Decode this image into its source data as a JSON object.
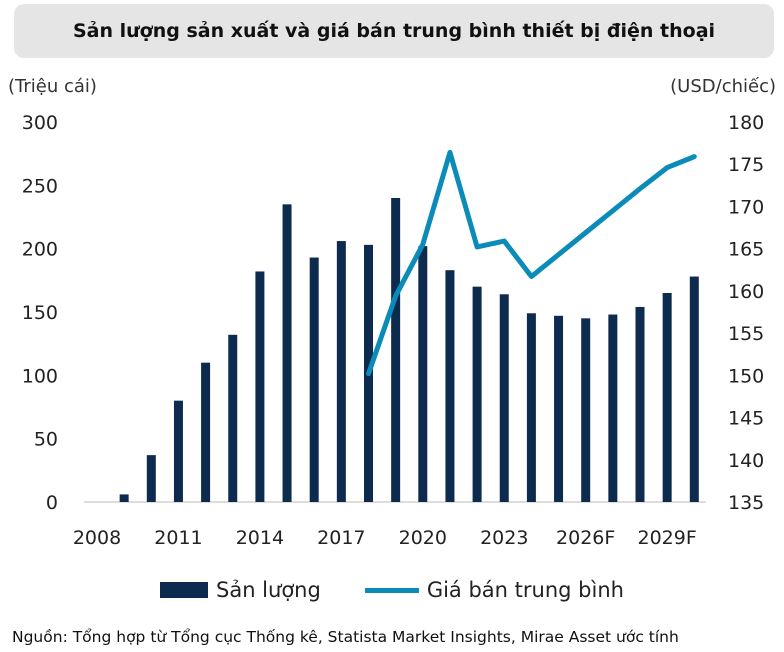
{
  "title": "Sản lượng sản xuất và giá bán trung bình thiết bị điện thoại",
  "source": "Nguồn: Tổng hợp từ Tổng cục Thống kê, Statista Market Insights, Mirae Asset ước tính",
  "chart_data": {
    "type": "bar+line",
    "title": "Sản lượng sản xuất và giá bán trung bình thiết bị điện thoại",
    "categories": [
      "2008",
      "2009",
      "2010",
      "2011",
      "2012",
      "2013",
      "2014",
      "2015",
      "2016",
      "2017",
      "2018",
      "2019",
      "2020",
      "2021",
      "2022",
      "2023",
      "2024",
      "2025F",
      "2026F",
      "2027F",
      "2028F",
      "2029F",
      "2030F"
    ],
    "x_tick_labels": [
      "2008",
      "2011",
      "2014",
      "2017",
      "2020",
      "2023",
      "2026F",
      "2029F"
    ],
    "left_axis": {
      "label": "(Triệu cái)",
      "ylim": [
        0,
        300
      ],
      "ticks": [
        "0",
        "50",
        "100",
        "150",
        "200",
        "250",
        "300"
      ]
    },
    "right_axis": {
      "label": "(USD/chiếc)",
      "ylim": [
        135,
        180
      ],
      "ticks": [
        "135",
        "140",
        "145",
        "150",
        "155",
        "160",
        "165",
        "170",
        "175",
        "180"
      ]
    },
    "grid": false,
    "legend_position": "bottom",
    "series": [
      {
        "name": "Sản lượng",
        "type": "bar",
        "axis": "left",
        "color": "#0d2b4e",
        "values": [
          0,
          6,
          37,
          80,
          110,
          132,
          182,
          235,
          193,
          206,
          203,
          240,
          202,
          183,
          170,
          164,
          149,
          147,
          145,
          148,
          154,
          165,
          178
        ]
      },
      {
        "name": "Giá bán trung bình",
        "type": "line",
        "axis": "right",
        "color": "#0a8bb8",
        "values": [
          null,
          null,
          null,
          null,
          null,
          null,
          null,
          null,
          null,
          null,
          150.2,
          159.4,
          165.5,
          176.4,
          165.2,
          165.9,
          161.7,
          164.3,
          166.9,
          169.5,
          172.1,
          174.6,
          175.9
        ]
      }
    ]
  }
}
